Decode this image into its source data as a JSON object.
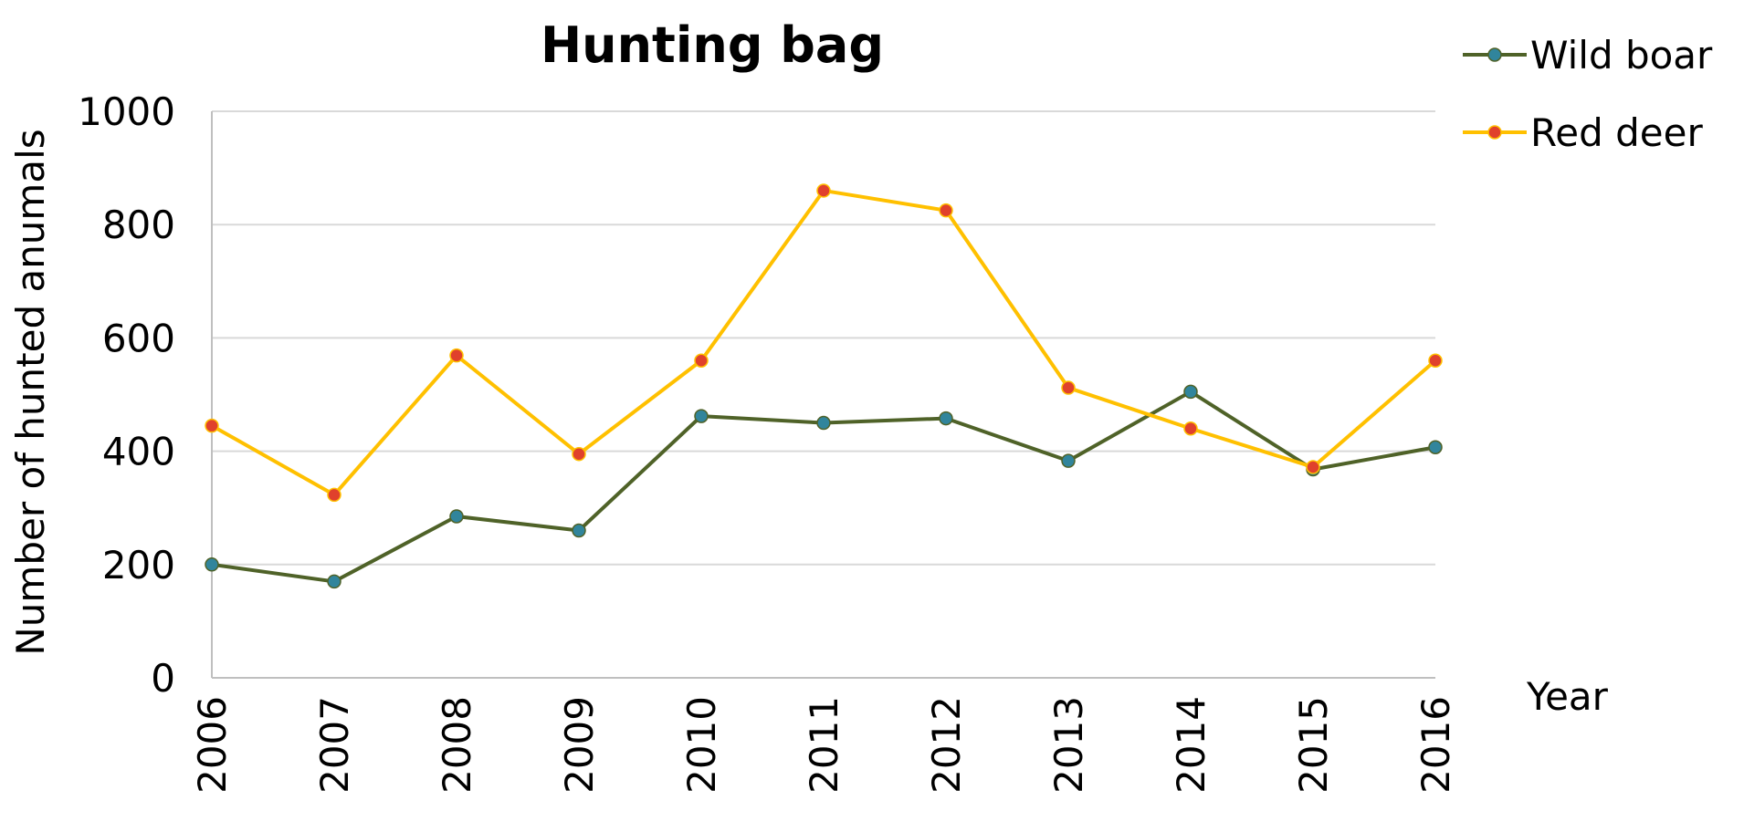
{
  "chart_data": {
    "type": "line",
    "title": "Hunting bag",
    "xlabel": "Year",
    "ylabel": "Number of hunted anumals",
    "x": [
      "2006",
      "2007",
      "2008",
      "2009",
      "2010",
      "2011",
      "2012",
      "2013",
      "2014",
      "2015",
      "2016"
    ],
    "ylim": [
      0,
      1000
    ],
    "yticks": [
      "0",
      "200",
      "400",
      "600",
      "800",
      "1000"
    ],
    "grid": true,
    "legend_position": "top-right",
    "series": [
      {
        "name": "Wild boar",
        "line_color": "#4f6228",
        "marker_color": "#31859c",
        "values": [
          200,
          170,
          285,
          260,
          462,
          450,
          458,
          383,
          505,
          368,
          407
        ]
      },
      {
        "name": "Red deer",
        "line_color": "#ffc000",
        "marker_color": "#e0412c",
        "values": [
          445,
          323,
          569,
          395,
          560,
          860,
          825,
          512,
          440,
          372,
          560
        ]
      }
    ]
  }
}
